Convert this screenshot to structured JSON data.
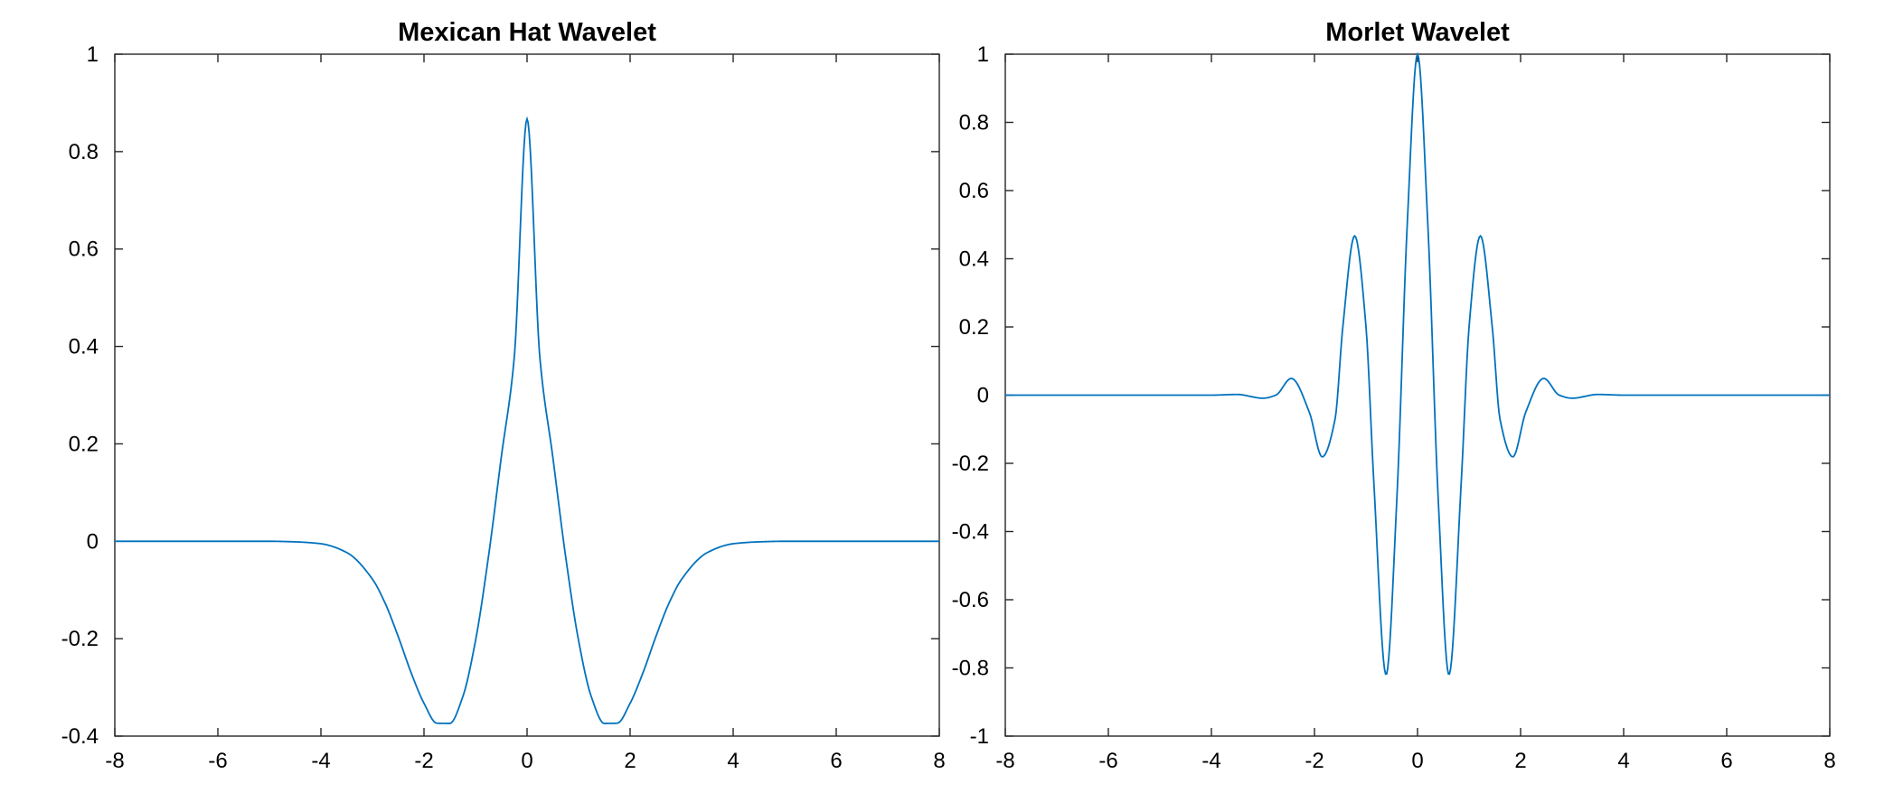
{
  "colors": {
    "line": "#0072BD",
    "axes": "#262626",
    "background": "#FFFFFF"
  },
  "chart_data": [
    {
      "type": "line",
      "title": "Mexican Hat Wavelet",
      "xlabel": "",
      "ylabel": "",
      "xlim": [
        -8,
        8
      ],
      "ylim": [
        -0.4,
        1
      ],
      "grid": false,
      "xticks": [
        -8,
        -6,
        -4,
        -2,
        0,
        2,
        4,
        6,
        8
      ],
      "yticks": [
        -0.4,
        -0.2,
        0,
        0.2,
        0.4,
        0.6,
        0.8,
        1
      ],
      "xtick_labels": [
        "-8",
        "-6",
        "-4",
        "-2",
        "0",
        "2",
        "4",
        "6",
        "8"
      ],
      "ytick_labels": [
        "-0.4",
        "-0.2",
        "0",
        "0.2",
        "0.4",
        "0.6",
        "0.8",
        "1"
      ],
      "series": [
        {
          "x": [
            -8,
            -7,
            -6,
            -5,
            -4.5,
            -4,
            -3.5,
            -3,
            -2.75,
            -2.5,
            -2.25,
            -2,
            -1.75,
            -1.5,
            -1.25,
            -1,
            -0.75,
            -0.5,
            -0.25,
            0,
            0.25,
            0.5,
            0.75,
            1,
            1.25,
            1.5,
            1.75,
            2,
            2.25,
            2.5,
            2.75,
            3,
            3.5,
            4,
            4.5,
            5,
            6,
            7,
            8
          ],
          "y": [
            0,
            0,
            0,
            0,
            -0.0012,
            -0.0051,
            -0.0231,
            -0.0779,
            -0.1282,
            -0.1957,
            -0.2698,
            -0.3326,
            -0.3735,
            -0.3739,
            -0.3201,
            -0.2039,
            -0.0324,
            0.1727,
            0.3752,
            0.867,
            0.3752,
            0.1727,
            -0.0324,
            -0.2039,
            -0.3201,
            -0.3739,
            -0.3735,
            -0.3326,
            -0.2698,
            -0.1957,
            -0.1282,
            -0.0779,
            -0.0231,
            -0.0051,
            -0.0012,
            0,
            0,
            0,
            0
          ]
        }
      ]
    },
    {
      "type": "line",
      "title": "Morlet Wavelet",
      "xlabel": "",
      "ylabel": "",
      "xlim": [
        -8,
        8
      ],
      "ylim": [
        -1,
        1
      ],
      "grid": false,
      "xticks": [
        -8,
        -6,
        -4,
        -2,
        0,
        2,
        4,
        6,
        8
      ],
      "yticks": [
        -1,
        -0.8,
        -0.6,
        -0.4,
        -0.2,
        0,
        0.2,
        0.4,
        0.6,
        0.8,
        1
      ],
      "xtick_labels": [
        "-8",
        "-6",
        "-4",
        "-2",
        "0",
        "2",
        "4",
        "6",
        "8"
      ],
      "ytick_labels": [
        "-1",
        "-0.8",
        "-0.6",
        "-0.4",
        "-0.2",
        "0",
        "0.2",
        "0.4",
        "0.6",
        "0.8",
        "1"
      ],
      "series": [
        {
          "x": [
            -8,
            -6,
            -4,
            -3.5,
            -3.0,
            -2.75,
            -2.45,
            -2.1,
            -1.85,
            -1.6,
            -1.45,
            -1.22,
            -1.0,
            -0.85,
            -0.61,
            -0.4,
            -0.2,
            0,
            0.2,
            0.4,
            0.61,
            0.85,
            1.0,
            1.22,
            1.45,
            1.6,
            1.85,
            2.1,
            2.45,
            2.75,
            3.0,
            3.5,
            4,
            6,
            8
          ],
          "y": [
            0,
            0,
            0,
            0.002,
            -0.009,
            0.0,
            0.049,
            -0.05,
            -0.181,
            -0.07,
            0.2,
            0.467,
            0.2,
            -0.25,
            -0.82,
            -0.3,
            0.5,
            1,
            0.5,
            -0.3,
            -0.82,
            -0.25,
            0.2,
            0.467,
            0.2,
            -0.07,
            -0.181,
            -0.05,
            0.049,
            0.0,
            -0.009,
            0.002,
            0,
            0,
            0
          ]
        }
      ]
    }
  ]
}
